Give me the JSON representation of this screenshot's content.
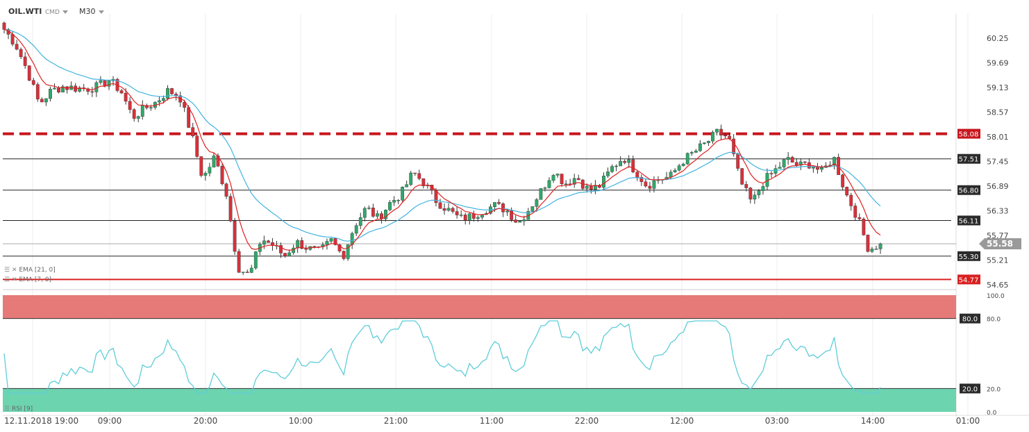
{
  "header": {
    "symbol": "OIL.WTI",
    "market": "CMD",
    "timeframe": "M30"
  },
  "indicators": {
    "ema1": "EMA [21, 0]",
    "ema2": "EMA [7, 0]",
    "rsi": "RSI [9]"
  },
  "colors": {
    "up": "#2fa86a",
    "down": "#d9303a",
    "ema21": "#41b3e0",
    "ema7": "#e02020",
    "rsi": "#5ecdd8",
    "rsi_zone": "#6dd4b0",
    "band": "#e57a78"
  },
  "chart_data": [
    {
      "type": "candlestick",
      "title": "OIL.WTI",
      "y_tick_labels": [
        "60.25",
        "59.69",
        "59.13",
        "58.57",
        "58.01",
        "57.45",
        "56.89",
        "56.33",
        "55.77",
        "55.21",
        "54.65"
      ],
      "x_tick_labels": [
        "12.11.2018 19:00",
        "09:00",
        "20:00",
        "10:00",
        "21:00",
        "11:00",
        "22:00",
        "12:00",
        "03:00",
        "14:00",
        "01:00"
      ],
      "ylim": [
        54.65,
        60.25
      ],
      "horizontal_levels": [
        {
          "label": "58.08",
          "value": 58.08,
          "style": "dashed-red"
        },
        {
          "label": "57.51",
          "value": 57.51
        },
        {
          "label": "56.80",
          "value": 56.8
        },
        {
          "label": "56.11",
          "value": 56.11
        },
        {
          "label": "55.30",
          "value": 55.3
        },
        {
          "label": "54.77",
          "value": 54.77,
          "style": "red"
        }
      ],
      "current_price": "55.58",
      "anchors": [
        60.45,
        60.1,
        59.5,
        58.75,
        59.05,
        59.15,
        59.12,
        59.1,
        59.15,
        59.3,
        59.05,
        58.45,
        58.65,
        58.8,
        59.05,
        58.95,
        58.1,
        57.05,
        57.55,
        56.75,
        55.05,
        54.85,
        55.7,
        55.55,
        55.3,
        55.62,
        55.48,
        55.4,
        55.65,
        55.3,
        56.0,
        56.4,
        56.15,
        56.5,
        56.72,
        57.2,
        56.95,
        56.55,
        56.35,
        56.15,
        56.2,
        56.35,
        56.45,
        56.35,
        56.05,
        56.4,
        56.8,
        57.25,
        56.95,
        57.1,
        56.8,
        56.9,
        57.3,
        57.55,
        57.25,
        56.9,
        57.05,
        57.1,
        57.45,
        57.65,
        57.85,
        58.1,
        58.0,
        57.0,
        56.5,
        57.0,
        57.25,
        57.5,
        57.35,
        57.4,
        57.2,
        57.55,
        56.75,
        56.2,
        55.45,
        55.58
      ],
      "series": [
        {
          "name": "EMA [21, 0]"
        },
        {
          "name": "EMA [7, 0]"
        }
      ]
    },
    {
      "type": "line",
      "title": "RSI [9]",
      "y_tick_labels": [
        "100.0",
        "80.0",
        "20.0",
        "0.0"
      ],
      "ylim": [
        0,
        100
      ],
      "levels": [
        {
          "label": "80.0",
          "value": 80
        },
        {
          "label": "20.0",
          "value": 20
        }
      ],
      "series": [
        {
          "name": "RSI [9]"
        }
      ]
    }
  ]
}
